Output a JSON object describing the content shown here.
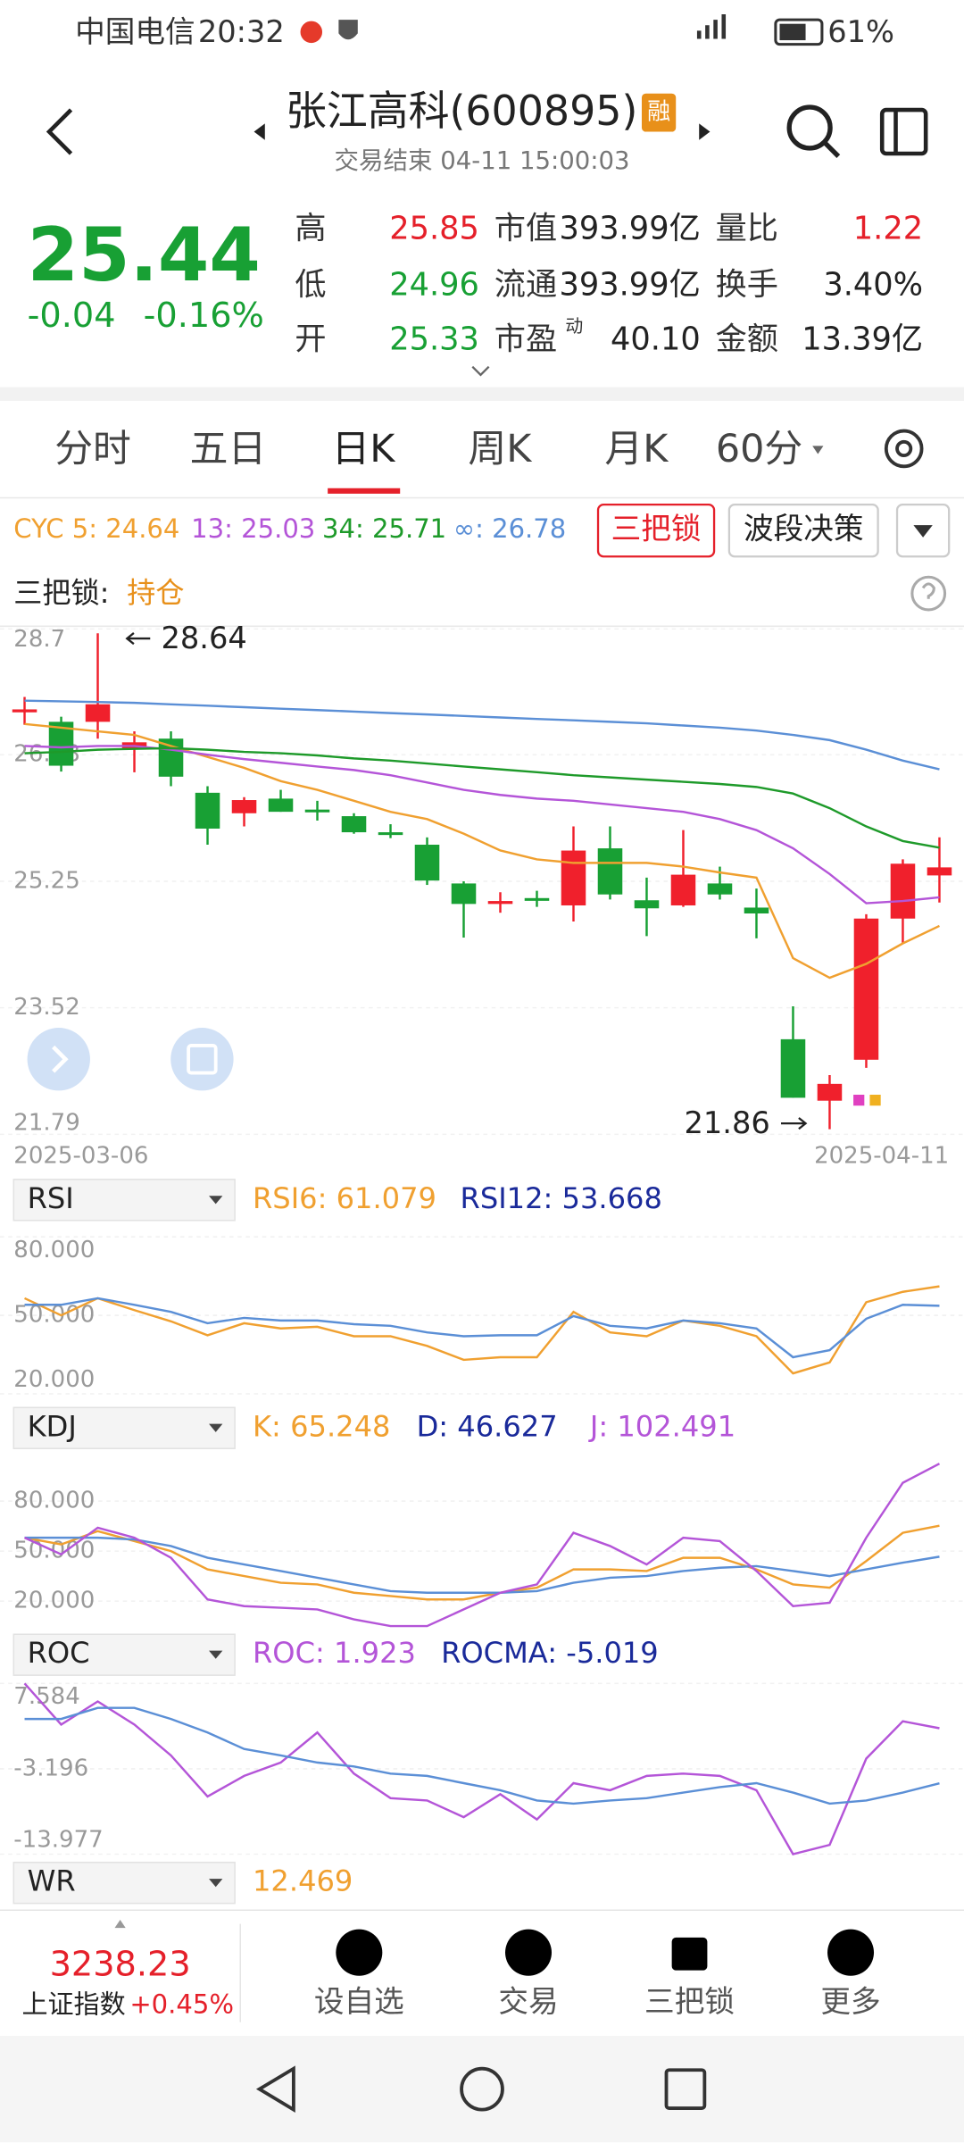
{
  "status_bar": {
    "carrier": "中国电信",
    "time": "20:32",
    "battery": "61%"
  },
  "header": {
    "title": "张江高科(600895)",
    "badge": "融",
    "subtitle": "交易结束 04-11 15:00:03"
  },
  "quote": {
    "price": "25.44",
    "change": "-0.04",
    "change_pct": "-0.16%"
  },
  "stats": [
    [
      {
        "label": "高",
        "value": "25.85"
      },
      {
        "label": "市值",
        "value": "393.99亿"
      },
      {
        "label": "量比",
        "value": "1.22"
      }
    ],
    [
      {
        "label": "低",
        "value": "24.96"
      },
      {
        "label": "流通",
        "value": "393.99亿"
      },
      {
        "label": "换手",
        "value": "3.40%"
      }
    ],
    [
      {
        "label": "开",
        "value": "25.33"
      },
      {
        "label": "市盈",
        "sup": "动",
        "value": "40.10"
      },
      {
        "label": "金额",
        "value": "13.39亿"
      }
    ]
  ],
  "tabs": [
    "分时",
    "五日",
    "日K",
    "周K",
    "月K",
    "60分"
  ],
  "buttons": [
    "三把锁",
    "波段决策"
  ],
  "status_line": {
    "label": "三把锁: ",
    "value": "持仓"
  },
  "chart_data": [
    {
      "type": "candlestick",
      "ylim": [
        21.79,
        28.7
      ],
      "yticks": [
        28.7,
        26.98,
        25.25,
        23.52,
        21.79
      ],
      "date_range": [
        "2025-03-06",
        "2025-04-11"
      ],
      "up_color": "#f0202c",
      "down_color": "#18a034",
      "annotations": [
        {
          "text": "28.64"
        },
        {
          "text": "21.86"
        }
      ],
      "open": [
        27.56,
        27.43,
        27.43,
        27.06,
        27.2,
        26.46,
        26.18,
        26.38,
        26.23,
        26.14,
        25.92,
        25.75,
        25.22,
        24.94,
        25.02,
        24.92,
        25.7,
        24.99,
        24.92,
        25.22,
        24.89,
        23.09,
        22.25,
        22.81,
        24.74,
        25.33
      ],
      "high": [
        27.77,
        27.5,
        28.64,
        27.3,
        27.3,
        26.55,
        26.4,
        26.5,
        26.35,
        26.18,
        26.03,
        25.85,
        25.25,
        25.1,
        25.12,
        26.0,
        26.0,
        25.3,
        25.95,
        25.45,
        25.15,
        23.54,
        22.6,
        24.8,
        25.55,
        25.85
      ],
      "low": [
        27.39,
        26.75,
        27.2,
        26.74,
        26.55,
        25.75,
        26.0,
        26.2,
        26.08,
        25.9,
        25.84,
        25.2,
        24.48,
        24.82,
        24.9,
        24.7,
        25.0,
        24.5,
        24.9,
        25.0,
        24.47,
        22.29,
        21.86,
        22.7,
        24.4,
        24.96
      ],
      "close": [
        27.6,
        26.83,
        27.67,
        27.15,
        26.68,
        25.97,
        26.36,
        26.2,
        26.21,
        25.92,
        25.9,
        25.26,
        24.94,
        24.98,
        25.0,
        25.67,
        25.07,
        24.88,
        25.34,
        25.07,
        24.81,
        22.29,
        22.48,
        24.74,
        25.49,
        25.44
      ],
      "series": [
        {
          "name": "CYC 5: 24.64",
          "color": "#f0a030",
          "values": [
            27.4,
            27.35,
            27.3,
            27.25,
            27.1,
            26.95,
            26.8,
            26.62,
            26.5,
            26.35,
            26.2,
            26.1,
            25.9,
            25.67,
            25.55,
            25.5,
            25.5,
            25.5,
            25.45,
            25.37,
            25.3,
            24.2,
            23.93,
            24.12,
            24.4,
            24.64
          ]
        },
        {
          "name": "13: 25.03",
          "color": "#b455d8",
          "values": [
            27.1,
            27.08,
            27.1,
            27.1,
            27.05,
            26.98,
            26.92,
            26.87,
            26.82,
            26.77,
            26.7,
            26.6,
            26.5,
            26.43,
            26.38,
            26.35,
            26.3,
            26.25,
            26.2,
            26.1,
            25.95,
            25.7,
            25.35,
            24.95,
            24.98,
            25.03
          ]
        },
        {
          "name": "34: 25.71",
          "color": "#1e9a2a",
          "values": [
            27.0,
            27.02,
            27.05,
            27.06,
            27.07,
            27.05,
            27.02,
            27.0,
            26.97,
            26.93,
            26.9,
            26.86,
            26.82,
            26.78,
            26.74,
            26.7,
            26.67,
            26.64,
            26.61,
            26.58,
            26.54,
            26.45,
            26.25,
            26.0,
            25.8,
            25.71
          ]
        },
        {
          "name": "∞: 26.78",
          "color": "#5b8fd6",
          "values": [
            27.72,
            27.71,
            27.7,
            27.69,
            27.67,
            27.65,
            27.63,
            27.61,
            27.59,
            27.57,
            27.55,
            27.53,
            27.51,
            27.49,
            27.47,
            27.45,
            27.43,
            27.41,
            27.38,
            27.35,
            27.31,
            27.25,
            27.18,
            27.05,
            26.9,
            26.78
          ]
        }
      ]
    },
    {
      "type": "line",
      "indicator": "RSI",
      "ylim": [
        20,
        80
      ],
      "yticks": [
        {
          "value": 80,
          "label": "80.000"
        },
        {
          "value": 50,
          "label": "50.000"
        },
        {
          "value": 20,
          "label": "20.000"
        }
      ],
      "series": [
        {
          "name": "RSI6: 61.079",
          "color": "#f0a030",
          "values": [
            56.5,
            50,
            56.5,
            52,
            47.7,
            42.4,
            47,
            45,
            45.6,
            42,
            42,
            38.3,
            33,
            34,
            34,
            51.3,
            43.5,
            42,
            48,
            46,
            42,
            27.8,
            32,
            55,
            59,
            61.08
          ]
        },
        {
          "name": "RSI12: 53.668",
          "color": "#5b8fd6",
          "values": [
            54,
            54,
            56.5,
            54,
            51.3,
            47,
            49,
            48,
            48,
            46.6,
            46,
            43.5,
            42,
            42.4,
            42.4,
            49.7,
            46,
            45,
            48,
            47,
            45,
            34,
            36.7,
            48.7,
            54,
            53.67
          ]
        }
      ]
    },
    {
      "type": "line",
      "indicator": "KDJ",
      "ylim": [
        5,
        105
      ],
      "yticks": [
        {
          "value": 80,
          "label": "80.000"
        },
        {
          "value": 50,
          "label": "50.000"
        },
        {
          "value": 20,
          "label": "20.000"
        }
      ],
      "series": [
        {
          "name": "K: 65.248",
          "color": "#f0a030",
          "values": [
            58,
            54,
            62,
            56,
            50,
            39,
            35,
            31,
            30,
            25,
            23,
            21,
            21,
            25,
            28,
            39,
            39,
            38,
            46,
            46,
            39,
            30,
            28,
            44,
            61,
            65.25
          ]
        },
        {
          "name": "D: 46.627",
          "color": "#5b8fd6",
          "values": [
            58,
            58,
            58,
            57,
            53,
            46,
            42,
            38,
            34,
            30,
            26,
            25,
            25,
            25,
            26,
            31,
            34,
            35,
            38,
            40,
            41,
            38,
            35,
            39,
            43,
            46.63
          ]
        },
        {
          "name": "J: 102.491",
          "color": "#b455d8",
          "values": [
            58,
            48,
            64,
            58,
            46,
            21,
            17,
            16,
            15,
            9,
            5,
            5,
            15,
            25,
            30,
            61,
            53,
            42,
            58,
            56,
            38,
            17,
            19,
            58,
            91,
            102.49
          ]
        }
      ]
    },
    {
      "type": "line",
      "indicator": "ROC",
      "ylim": [
        -13.977,
        7.584
      ],
      "yticks": [
        7.584,
        -3.196,
        -13.977
      ],
      "series": [
        {
          "name": "ROC: 1.923",
          "color": "#b455d8",
          "values": [
            7.58,
            2.4,
            5.3,
            2.4,
            -1.5,
            -6.7,
            -4.1,
            -2.4,
            1.4,
            -3.8,
            -6.9,
            -7.2,
            -9.3,
            -6.4,
            -9.6,
            -5,
            -5.9,
            -4.1,
            -3.8,
            -4.1,
            -5.9,
            -13.98,
            -12.8,
            -1.9,
            2.8,
            1.92
          ]
        },
        {
          "name": "ROCMA: -5.019",
          "color": "#5b8fd6",
          "values": [
            3.1,
            3.1,
            4.5,
            4.5,
            3.1,
            1.4,
            -0.7,
            -1.5,
            -2.4,
            -2.9,
            -3.8,
            -4.1,
            -5,
            -5.9,
            -7.2,
            -7.6,
            -7.2,
            -6.9,
            -6.2,
            -5.5,
            -5,
            -6.2,
            -7.6,
            -7.2,
            -6.2,
            -5.02
          ]
        }
      ]
    }
  ],
  "wr": {
    "indicator": "WR",
    "value": "12.469"
  },
  "footer": {
    "index_value": "3238.23",
    "index_name": "上证指数",
    "index_change": "+0.45%",
    "nav": [
      "设自选",
      "交易",
      "三把锁",
      "更多"
    ]
  }
}
